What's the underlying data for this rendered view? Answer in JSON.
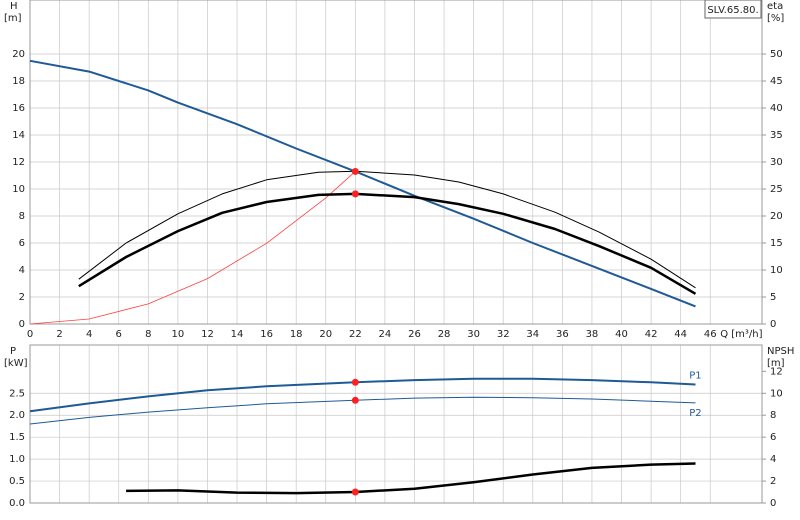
{
  "chart_data": [
    {
      "type": "line",
      "title": "SLV.65.80.",
      "ylabel": "H",
      "yunit": "[m]",
      "y2label": "eta",
      "y2unit": "[%]",
      "xlabel": "Q [m³/h]",
      "xlim": [
        0,
        49.5
      ],
      "xticks": [
        0,
        2,
        4,
        6,
        8,
        10,
        12,
        14,
        16,
        18,
        20,
        22,
        24,
        26,
        28,
        30,
        32,
        34,
        36,
        38,
        40,
        42,
        44,
        46
      ],
      "ylim": [
        0,
        24
      ],
      "yticks": [
        0,
        2,
        4,
        6,
        8,
        10,
        12,
        14,
        16,
        18,
        20
      ],
      "y2lim": [
        0,
        60
      ],
      "y2ticks": [
        0,
        5,
        10,
        15,
        20,
        25,
        30,
        35,
        40,
        45,
        50
      ],
      "grid": true,
      "series": [
        {
          "type": "line",
          "color": "#1f5a96",
          "linewidth": 2,
          "x": [
            0,
            4,
            8,
            10,
            14,
            18,
            22,
            26,
            30,
            34,
            38,
            42,
            45
          ],
          "values": [
            19.5,
            18.7,
            17.3,
            16.4,
            14.8,
            13.0,
            11.3,
            9.5,
            7.8,
            6.0,
            4.3,
            2.6,
            1.3
          ]
        },
        {
          "type": "line",
          "color": "#ff4040",
          "linewidth": 0.8,
          "x": [
            0,
            4,
            8,
            12,
            16,
            20,
            22
          ],
          "values": [
            0,
            0.37,
            1.49,
            3.36,
            5.98,
            9.34,
            11.3
          ]
        },
        {
          "type": "line",
          "color": "#000000",
          "linewidth": 1,
          "axis": "y2",
          "x": [
            3.3,
            6.5,
            10,
            13,
            16,
            19.5,
            22,
            26,
            29,
            32,
            35.5,
            38.5,
            42,
            45
          ],
          "values": [
            8.3,
            15.0,
            20.4,
            24.1,
            26.7,
            28.1,
            28.3,
            27.6,
            26.3,
            24.1,
            20.7,
            17.0,
            12.0,
            6.7
          ]
        },
        {
          "type": "line",
          "color": "#000000",
          "linewidth": 2.5,
          "axis": "y2",
          "x": [
            3.3,
            6.5,
            10,
            13,
            16,
            19.5,
            22,
            26,
            29,
            32,
            35.5,
            38.5,
            42,
            45
          ],
          "values": [
            7.0,
            12.4,
            17.2,
            20.6,
            22.6,
            23.9,
            24.1,
            23.5,
            22.2,
            20.4,
            17.6,
            14.4,
            10.4,
            5.6
          ]
        },
        {
          "type": "scatter",
          "color": "#ff2020",
          "x": [
            22
          ],
          "values": [
            11.3
          ]
        },
        {
          "type": "scatter",
          "color": "#ff2020",
          "axis": "y2",
          "x": [
            22
          ],
          "values": [
            24.1
          ]
        }
      ]
    },
    {
      "type": "line",
      "ylabel": "P",
      "yunit": "[kW]",
      "y2label": "NPSH",
      "y2unit": "[m]",
      "xlim": [
        0,
        49.5
      ],
      "xticks": [
        0,
        2,
        4,
        6,
        8,
        10,
        12,
        14,
        16,
        18,
        20,
        22,
        24,
        26,
        28,
        30,
        32,
        34,
        36,
        38,
        40,
        42,
        44,
        46
      ],
      "xtick_labels": false,
      "ylim": [
        0,
        3.6
      ],
      "yticks": [
        {
          "value": 0,
          "label": "0.0"
        },
        {
          "value": 0.5,
          "label": "0.5"
        },
        {
          "value": 1,
          "label": "1.0"
        },
        {
          "value": 1.5,
          "label": "1.5"
        },
        {
          "value": 2,
          "label": "2.0"
        },
        {
          "value": 2.5,
          "label": "2.5"
        }
      ],
      "y2lim": [
        0,
        14.4
      ],
      "y2ticks": [
        0,
        2,
        4,
        6,
        8,
        10,
        12
      ],
      "grid": true,
      "series": [
        {
          "type": "line",
          "name": "P1",
          "label_side": "above",
          "color": "#1f5a96",
          "linewidth": 2,
          "x": [
            0,
            4,
            8,
            12,
            16,
            22,
            26,
            30,
            34,
            38,
            42,
            45
          ],
          "values": [
            2.09,
            2.27,
            2.43,
            2.57,
            2.66,
            2.75,
            2.8,
            2.83,
            2.83,
            2.8,
            2.75,
            2.7
          ]
        },
        {
          "type": "line",
          "name": "P2",
          "label_side": "below",
          "color": "#1f5a96",
          "linewidth": 1,
          "x": [
            0,
            4,
            8,
            12,
            16,
            22,
            26,
            30,
            34,
            38,
            42,
            45
          ],
          "values": [
            1.8,
            1.95,
            2.07,
            2.17,
            2.26,
            2.34,
            2.39,
            2.41,
            2.4,
            2.37,
            2.32,
            2.28
          ]
        },
        {
          "type": "line",
          "color": "#000000",
          "linewidth": 2.5,
          "axis": "y2",
          "x": [
            6.5,
            10,
            14,
            18,
            22,
            26,
            30,
            34,
            38,
            42,
            45
          ],
          "values": [
            1.1,
            1.15,
            0.95,
            0.9,
            1.0,
            1.3,
            1.9,
            2.6,
            3.2,
            3.5,
            3.6
          ]
        },
        {
          "type": "scatter",
          "color": "#ff2020",
          "x": [
            22,
            22
          ],
          "values": [
            2.75,
            2.34
          ]
        },
        {
          "type": "scatter",
          "color": "#ff2020",
          "axis": "y2",
          "x": [
            22
          ],
          "values": [
            1.0
          ]
        }
      ]
    }
  ]
}
